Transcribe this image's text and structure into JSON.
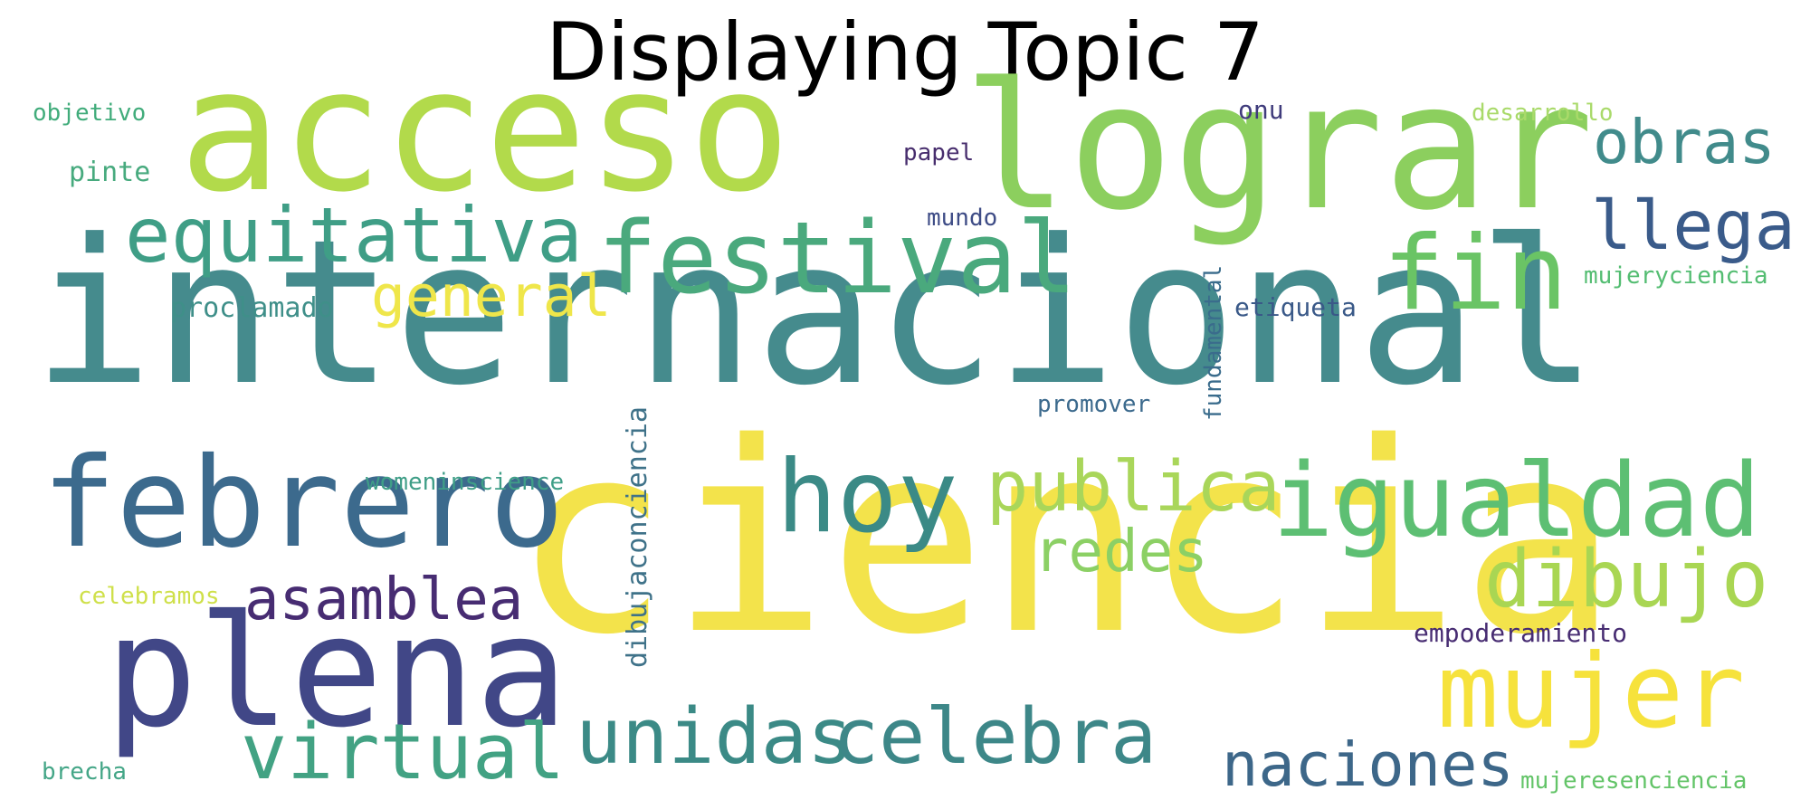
{
  "title": "Displaying Topic 7",
  "words": [
    {
      "text": "internacional",
      "color": "#458b8d"
    },
    {
      "text": "ciencia",
      "color": "#f3e34b"
    },
    {
      "text": "acceso",
      "color": "#b2da4b"
    },
    {
      "text": "lograr",
      "color": "#8ccf5e"
    },
    {
      "text": "febrero",
      "color": "#3c6a8d"
    },
    {
      "text": "plena",
      "color": "#414787"
    },
    {
      "text": "festival",
      "color": "#4aa97d"
    },
    {
      "text": "igualdad",
      "color": "#5dbf73"
    },
    {
      "text": "equitativa",
      "color": "#3f9e86"
    },
    {
      "text": "hoy",
      "color": "#3b8a86"
    },
    {
      "text": "fin",
      "color": "#6ac465"
    },
    {
      "text": "mujer",
      "color": "#f6e23c"
    },
    {
      "text": "unidas",
      "color": "#3b8a86"
    },
    {
      "text": "celebra",
      "color": "#3d8788"
    },
    {
      "text": "virtual",
      "color": "#42a283"
    },
    {
      "text": "publica",
      "color": "#a9d65a"
    },
    {
      "text": "dibujo",
      "color": "#a9d653"
    },
    {
      "text": "naciones",
      "color": "#3d6789"
    },
    {
      "text": "asamblea",
      "color": "#472c72"
    },
    {
      "text": "obras",
      "color": "#418b8b"
    },
    {
      "text": "llega",
      "color": "#3a5b8a"
    },
    {
      "text": "general",
      "color": "#efe64a"
    },
    {
      "text": "redes",
      "color": "#8cd065"
    },
    {
      "text": "proclamado",
      "color": "#3f8f89"
    },
    {
      "text": "pinte",
      "color": "#47aa7e"
    },
    {
      "text": "objetivo",
      "color": "#41ac7b"
    },
    {
      "text": "desarrollo",
      "color": "#a9da6a"
    },
    {
      "text": "papel",
      "color": "#472d6d"
    },
    {
      "text": "mundo",
      "color": "#3e4c86"
    },
    {
      "text": "onu",
      "color": "#403c7c"
    },
    {
      "text": "etiqueta",
      "color": "#3a5988"
    },
    {
      "text": "fundamental",
      "color": "#3a6c8c"
    },
    {
      "text": "promover",
      "color": "#3c6a8d"
    },
    {
      "text": "womeninscience",
      "color": "#3f9e87"
    },
    {
      "text": "dibujaconciencia",
      "color": "#3f7289"
    },
    {
      "text": "celebramos",
      "color": "#cfe04a"
    },
    {
      "text": "mujeryciencia",
      "color": "#54bd72"
    },
    {
      "text": "empoderamiento",
      "color": "#472c72"
    },
    {
      "text": "brecha",
      "color": "#44a687"
    },
    {
      "text": "mujeresenciencia",
      "color": "#63c468"
    }
  ]
}
